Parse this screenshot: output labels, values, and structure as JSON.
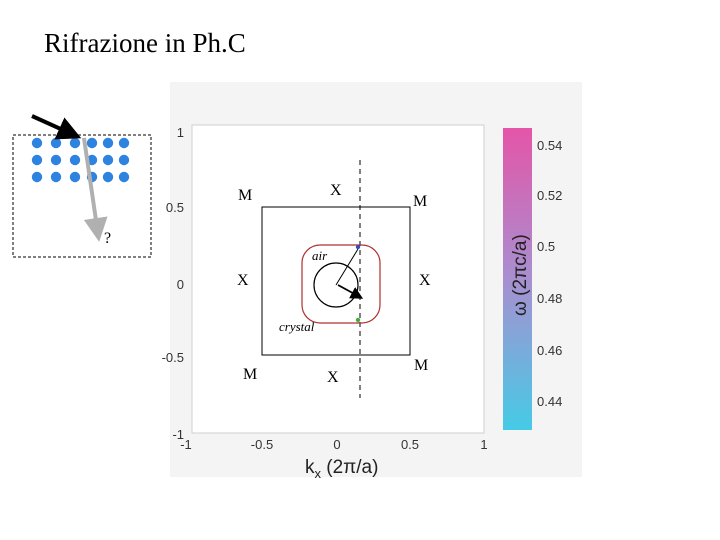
{
  "title": "Rifrazione in Ph.C",
  "question_mark": "?",
  "plot": {
    "y_ticks": [
      "1",
      "0.5",
      "0",
      "-0.5",
      "-1"
    ],
    "x_ticks": [
      "-1",
      "-0.5",
      "0",
      "0.5",
      "1"
    ],
    "x_axis_label_main": "k",
    "x_axis_label_sub": "x",
    "x_axis_label_rest": " (2π/a)"
  },
  "zone_labels": {
    "M_top_left": "M",
    "X_top": "X",
    "M_top_right": "M",
    "X_left": "X",
    "X_right": "X",
    "M_bottom_left": "M",
    "X_bottom": "X",
    "M_bottom_right": "M"
  },
  "contours": {
    "air_label": "air",
    "crystal_label": "crystal"
  },
  "colorbar": {
    "ticks": [
      "0.54",
      "0.52",
      "0.5",
      "0.48",
      "0.46",
      "0.44"
    ],
    "label": "ω (2πc/a)",
    "color_top": "#e455a8",
    "color_bottom": "#45cbe6"
  },
  "colors": {
    "lattice_dot": "#2e83e0",
    "incident_arrow": "#000000",
    "refracted_arrow": "#b0b0b0",
    "crystal_contour": "#b03030"
  }
}
